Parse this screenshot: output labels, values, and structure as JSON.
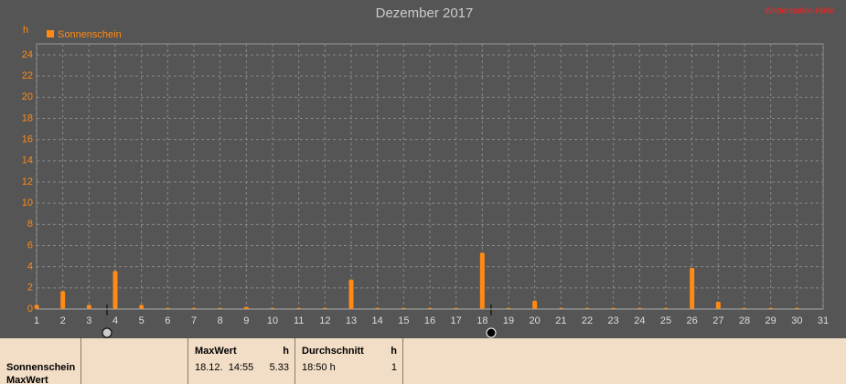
{
  "chart_data": {
    "type": "bar",
    "title": "Dezember 2017",
    "subtitle": "Wetterstation Halle",
    "y_label": "h",
    "x": [
      1,
      2,
      3,
      4,
      5,
      6,
      7,
      8,
      9,
      10,
      11,
      12,
      13,
      14,
      15,
      16,
      17,
      18,
      19,
      20,
      21,
      22,
      23,
      24,
      25,
      26,
      27,
      28,
      29,
      30,
      31
    ],
    "series": [
      {
        "name": "Sonnenschein",
        "color": "#ff8a14",
        "values": [
          0.4,
          1.7,
          0.4,
          3.6,
          0.4,
          0.1,
          0.1,
          0.1,
          0.2,
          0.1,
          0.1,
          0.1,
          2.8,
          0.1,
          0.1,
          0.1,
          0.1,
          5.33,
          0.1,
          0.8,
          0.1,
          0.1,
          0.1,
          0.1,
          0.1,
          3.9,
          0.7,
          0.1,
          0.1,
          0.1,
          0
        ]
      }
    ],
    "xlim": [
      1,
      31
    ],
    "xticks": [
      1,
      2,
      3,
      4,
      5,
      6,
      7,
      8,
      9,
      10,
      11,
      12,
      13,
      14,
      15,
      16,
      17,
      18,
      19,
      20,
      21,
      22,
      23,
      24,
      25,
      26,
      27,
      28,
      29,
      30,
      31
    ],
    "ylim": [
      0,
      24
    ],
    "yticks": [
      0,
      2,
      4,
      6,
      8,
      10,
      12,
      14,
      16,
      18,
      20,
      22,
      24
    ],
    "grid": true,
    "legend": "top-left"
  },
  "table": {
    "rows": [
      [
        "Sonnenschein",
        "MaxWert"
      ]
    ],
    "maxwert": {
      "header": "MaxWert",
      "unit": "h",
      "date": "18.12.  14:55",
      "value": "5.33"
    },
    "durchschnitt": {
      "header": "Durchschnitt",
      "unit": "h",
      "time": "18:50 h",
      "value": "1"
    }
  }
}
